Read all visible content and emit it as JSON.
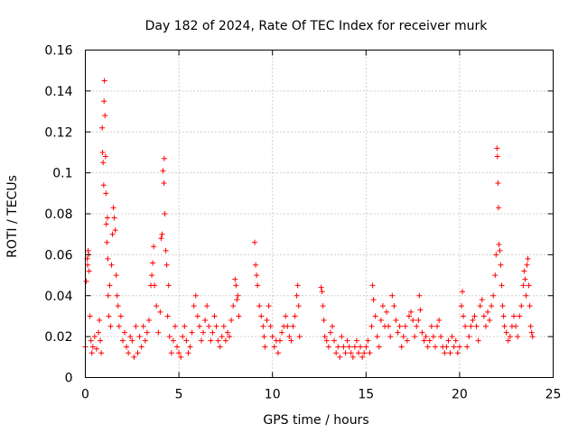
{
  "chart_data": {
    "type": "scatter",
    "title": "Day 182 of 2024, Rate Of TEC Index for receiver murk",
    "xlabel": "GPS time / hours",
    "ylabel": "ROTI / TECUs",
    "xlim": [
      0,
      25
    ],
    "ylim": [
      0,
      0.16
    ],
    "x_ticks": [
      0,
      5,
      10,
      15,
      20,
      25
    ],
    "x_tick_labels": [
      "0",
      "5",
      "10",
      "15",
      "20",
      "25"
    ],
    "y_ticks": [
      0,
      0.02,
      0.04,
      0.06,
      0.08,
      0.1,
      0.12,
      0.14,
      0.16
    ],
    "y_tick_labels": [
      "0",
      "0.02",
      "0.04",
      "0.06",
      "0.08",
      "0.1",
      "0.12",
      "0.14",
      "0.16"
    ],
    "grid": true,
    "marker": "+",
    "color": "#ff0000",
    "series": [
      {
        "name": "ROTI",
        "points": [
          [
            0.0,
            0.015
          ],
          [
            0.05,
            0.047
          ],
          [
            0.1,
            0.058
          ],
          [
            0.12,
            0.055
          ],
          [
            0.15,
            0.062
          ],
          [
            0.18,
            0.06
          ],
          [
            0.2,
            0.052
          ],
          [
            0.25,
            0.03
          ],
          [
            0.3,
            0.018
          ],
          [
            0.35,
            0.012
          ],
          [
            0.4,
            0.015
          ],
          [
            0.5,
            0.02
          ],
          [
            0.6,
            0.014
          ],
          [
            0.7,
            0.022
          ],
          [
            0.75,
            0.028
          ],
          [
            0.8,
            0.018
          ],
          [
            0.85,
            0.012
          ],
          [
            0.9,
            0.122
          ],
          [
            0.92,
            0.11
          ],
          [
            0.95,
            0.105
          ],
          [
            0.98,
            0.094
          ],
          [
            1.0,
            0.135
          ],
          [
            1.02,
            0.145
          ],
          [
            1.05,
            0.128
          ],
          [
            1.08,
            0.108
          ],
          [
            1.1,
            0.09
          ],
          [
            1.12,
            0.075
          ],
          [
            1.15,
            0.066
          ],
          [
            1.18,
            0.078
          ],
          [
            1.2,
            0.058
          ],
          [
            1.22,
            0.04
          ],
          [
            1.25,
            0.03
          ],
          [
            1.3,
            0.045
          ],
          [
            1.35,
            0.025
          ],
          [
            1.4,
            0.055
          ],
          [
            1.45,
            0.07
          ],
          [
            1.5,
            0.083
          ],
          [
            1.55,
            0.078
          ],
          [
            1.6,
            0.072
          ],
          [
            1.65,
            0.05
          ],
          [
            1.7,
            0.04
          ],
          [
            1.75,
            0.035
          ],
          [
            1.8,
            0.025
          ],
          [
            1.9,
            0.03
          ],
          [
            2.0,
            0.018
          ],
          [
            2.1,
            0.022
          ],
          [
            2.2,
            0.015
          ],
          [
            2.3,
            0.012
          ],
          [
            2.4,
            0.02
          ],
          [
            2.5,
            0.018
          ],
          [
            2.6,
            0.01
          ],
          [
            2.7,
            0.025
          ],
          [
            2.8,
            0.012
          ],
          [
            2.9,
            0.02
          ],
          [
            3.0,
            0.015
          ],
          [
            3.1,
            0.025
          ],
          [
            3.2,
            0.018
          ],
          [
            3.3,
            0.022
          ],
          [
            3.4,
            0.028
          ],
          [
            3.5,
            0.045
          ],
          [
            3.55,
            0.05
          ],
          [
            3.6,
            0.056
          ],
          [
            3.65,
            0.064
          ],
          [
            3.7,
            0.045
          ],
          [
            3.8,
            0.035
          ],
          [
            3.9,
            0.022
          ],
          [
            4.0,
            0.032
          ],
          [
            4.05,
            0.068
          ],
          [
            4.1,
            0.07
          ],
          [
            4.15,
            0.101
          ],
          [
            4.2,
            0.095
          ],
          [
            4.22,
            0.107
          ],
          [
            4.25,
            0.08
          ],
          [
            4.3,
            0.062
          ],
          [
            4.35,
            0.055
          ],
          [
            4.4,
            0.03
          ],
          [
            4.45,
            0.045
          ],
          [
            4.5,
            0.02
          ],
          [
            4.6,
            0.012
          ],
          [
            4.7,
            0.018
          ],
          [
            4.8,
            0.025
          ],
          [
            4.9,
            0.015
          ],
          [
            5.0,
            0.012
          ],
          [
            5.1,
            0.01
          ],
          [
            5.2,
            0.02
          ],
          [
            5.3,
            0.025
          ],
          [
            5.4,
            0.018
          ],
          [
            5.5,
            0.012
          ],
          [
            5.6,
            0.015
          ],
          [
            5.7,
            0.022
          ],
          [
            5.8,
            0.035
          ],
          [
            5.9,
            0.04
          ],
          [
            6.0,
            0.03
          ],
          [
            6.1,
            0.025
          ],
          [
            6.2,
            0.018
          ],
          [
            6.3,
            0.022
          ],
          [
            6.4,
            0.028
          ],
          [
            6.5,
            0.035
          ],
          [
            6.6,
            0.025
          ],
          [
            6.7,
            0.018
          ],
          [
            6.8,
            0.022
          ],
          [
            6.9,
            0.03
          ],
          [
            7.0,
            0.025
          ],
          [
            7.1,
            0.018
          ],
          [
            7.2,
            0.015
          ],
          [
            7.3,
            0.02
          ],
          [
            7.4,
            0.025
          ],
          [
            7.5,
            0.018
          ],
          [
            7.6,
            0.022
          ],
          [
            7.7,
            0.02
          ],
          [
            7.8,
            0.028
          ],
          [
            7.9,
            0.035
          ],
          [
            8.0,
            0.048
          ],
          [
            8.05,
            0.045
          ],
          [
            8.1,
            0.038
          ],
          [
            8.15,
            0.04
          ],
          [
            8.2,
            0.03
          ],
          [
            9.05,
            0.066
          ],
          [
            9.1,
            0.055
          ],
          [
            9.15,
            0.05
          ],
          [
            9.2,
            0.045
          ],
          [
            9.3,
            0.035
          ],
          [
            9.4,
            0.03
          ],
          [
            9.5,
            0.025
          ],
          [
            9.55,
            0.02
          ],
          [
            9.6,
            0.015
          ],
          [
            9.7,
            0.028
          ],
          [
            9.8,
            0.035
          ],
          [
            9.9,
            0.025
          ],
          [
            10.0,
            0.02
          ],
          [
            10.1,
            0.015
          ],
          [
            10.2,
            0.018
          ],
          [
            10.3,
            0.012
          ],
          [
            10.4,
            0.018
          ],
          [
            10.5,
            0.022
          ],
          [
            10.6,
            0.025
          ],
          [
            10.7,
            0.03
          ],
          [
            10.8,
            0.025
          ],
          [
            10.9,
            0.02
          ],
          [
            11.0,
            0.018
          ],
          [
            11.1,
            0.025
          ],
          [
            11.2,
            0.03
          ],
          [
            11.3,
            0.04
          ],
          [
            11.35,
            0.045
          ],
          [
            11.4,
            0.035
          ],
          [
            11.45,
            0.02
          ],
          [
            12.6,
            0.044
          ],
          [
            12.65,
            0.042
          ],
          [
            12.7,
            0.035
          ],
          [
            12.75,
            0.028
          ],
          [
            12.8,
            0.02
          ],
          [
            12.9,
            0.018
          ],
          [
            13.0,
            0.015
          ],
          [
            13.1,
            0.022
          ],
          [
            13.2,
            0.025
          ],
          [
            13.3,
            0.018
          ],
          [
            13.4,
            0.012
          ],
          [
            13.5,
            0.015
          ],
          [
            13.6,
            0.01
          ],
          [
            13.7,
            0.02
          ],
          [
            13.8,
            0.015
          ],
          [
            13.9,
            0.012
          ],
          [
            14.0,
            0.018
          ],
          [
            14.1,
            0.015
          ],
          [
            14.2,
            0.012
          ],
          [
            14.3,
            0.01
          ],
          [
            14.4,
            0.015
          ],
          [
            14.5,
            0.018
          ],
          [
            14.6,
            0.012
          ],
          [
            14.7,
            0.015
          ],
          [
            14.8,
            0.01
          ],
          [
            14.9,
            0.012
          ],
          [
            15.0,
            0.015
          ],
          [
            15.1,
            0.018
          ],
          [
            15.2,
            0.012
          ],
          [
            15.3,
            0.025
          ],
          [
            15.35,
            0.045
          ],
          [
            15.4,
            0.038
          ],
          [
            15.5,
            0.03
          ],
          [
            15.6,
            0.02
          ],
          [
            15.7,
            0.015
          ],
          [
            15.8,
            0.028
          ],
          [
            15.9,
            0.035
          ],
          [
            16.0,
            0.025
          ],
          [
            16.1,
            0.032
          ],
          [
            16.2,
            0.025
          ],
          [
            16.3,
            0.02
          ],
          [
            16.4,
            0.04
          ],
          [
            16.5,
            0.035
          ],
          [
            16.6,
            0.028
          ],
          [
            16.7,
            0.022
          ],
          [
            16.8,
            0.025
          ],
          [
            16.9,
            0.015
          ],
          [
            17.0,
            0.02
          ],
          [
            17.1,
            0.025
          ],
          [
            17.2,
            0.018
          ],
          [
            17.3,
            0.03
          ],
          [
            17.4,
            0.032
          ],
          [
            17.5,
            0.028
          ],
          [
            17.6,
            0.02
          ],
          [
            17.7,
            0.025
          ],
          [
            17.8,
            0.028
          ],
          [
            17.85,
            0.04
          ],
          [
            17.9,
            0.033
          ],
          [
            18.0,
            0.022
          ],
          [
            18.1,
            0.018
          ],
          [
            18.2,
            0.02
          ],
          [
            18.3,
            0.015
          ],
          [
            18.4,
            0.018
          ],
          [
            18.5,
            0.025
          ],
          [
            18.6,
            0.02
          ],
          [
            18.7,
            0.015
          ],
          [
            18.8,
            0.025
          ],
          [
            18.9,
            0.028
          ],
          [
            19.0,
            0.02
          ],
          [
            19.1,
            0.015
          ],
          [
            19.2,
            0.012
          ],
          [
            19.3,
            0.015
          ],
          [
            19.4,
            0.018
          ],
          [
            19.5,
            0.012
          ],
          [
            19.6,
            0.02
          ],
          [
            19.7,
            0.015
          ],
          [
            19.8,
            0.018
          ],
          [
            19.9,
            0.012
          ],
          [
            20.0,
            0.015
          ],
          [
            20.1,
            0.035
          ],
          [
            20.15,
            0.042
          ],
          [
            20.2,
            0.03
          ],
          [
            20.3,
            0.025
          ],
          [
            20.4,
            0.015
          ],
          [
            20.5,
            0.02
          ],
          [
            20.6,
            0.025
          ],
          [
            20.7,
            0.028
          ],
          [
            20.8,
            0.03
          ],
          [
            20.9,
            0.025
          ],
          [
            21.0,
            0.018
          ],
          [
            21.1,
            0.035
          ],
          [
            21.2,
            0.038
          ],
          [
            21.3,
            0.03
          ],
          [
            21.4,
            0.025
          ],
          [
            21.5,
            0.032
          ],
          [
            21.6,
            0.028
          ],
          [
            21.7,
            0.035
          ],
          [
            21.8,
            0.04
          ],
          [
            21.9,
            0.05
          ],
          [
            21.95,
            0.06
          ],
          [
            22.0,
            0.112
          ],
          [
            22.02,
            0.108
          ],
          [
            22.05,
            0.095
          ],
          [
            22.08,
            0.083
          ],
          [
            22.1,
            0.065
          ],
          [
            22.15,
            0.062
          ],
          [
            22.2,
            0.055
          ],
          [
            22.25,
            0.045
          ],
          [
            22.3,
            0.035
          ],
          [
            22.35,
            0.03
          ],
          [
            22.4,
            0.025
          ],
          [
            22.5,
            0.022
          ],
          [
            22.6,
            0.018
          ],
          [
            22.7,
            0.02
          ],
          [
            22.8,
            0.025
          ],
          [
            22.9,
            0.03
          ],
          [
            23.0,
            0.025
          ],
          [
            23.1,
            0.02
          ],
          [
            23.2,
            0.03
          ],
          [
            23.3,
            0.035
          ],
          [
            23.4,
            0.045
          ],
          [
            23.45,
            0.052
          ],
          [
            23.5,
            0.048
          ],
          [
            23.55,
            0.04
          ],
          [
            23.6,
            0.055
          ],
          [
            23.65,
            0.058
          ],
          [
            23.7,
            0.045
          ],
          [
            23.75,
            0.035
          ],
          [
            23.8,
            0.025
          ],
          [
            23.85,
            0.022
          ],
          [
            23.9,
            0.02
          ]
        ]
      }
    ]
  }
}
